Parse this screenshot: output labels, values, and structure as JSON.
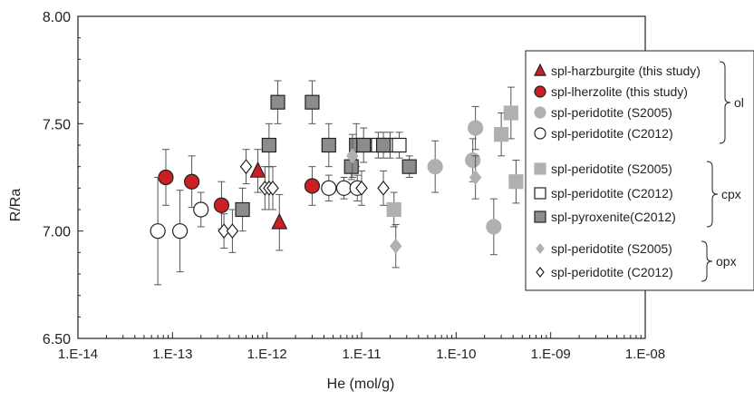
{
  "chart_data": {
    "type": "scatter",
    "title": "",
    "xlabel": "He (mol/g)",
    "ylabel": "R/Ra",
    "xscale": "log",
    "xlim": [
      1e-14,
      1e-08
    ],
    "ylim": [
      6.5,
      8.0
    ],
    "xtick_labels": [
      "1.E-14",
      "1.E-13",
      "1.E-12",
      "1.E-11",
      "1.E-10",
      "1.E-09",
      "1.E-08"
    ],
    "ytick_labels": [
      "6.50",
      "7.00",
      "7.50",
      "8.00"
    ],
    "grid": false,
    "legend_placement": "right",
    "legend_groups": [
      {
        "name": "ol",
        "series": [
          0,
          1,
          2,
          3
        ]
      },
      {
        "name": "cpx",
        "series": [
          4,
          5,
          6
        ]
      },
      {
        "name": "opx",
        "series": [
          7,
          8
        ]
      }
    ],
    "series": [
      {
        "name": "spl-harzburgite (this study)",
        "marker": "triangle",
        "fill": "#cc1f24",
        "stroke": "#222222",
        "points": [
          {
            "x": 8e-13,
            "y": 7.28,
            "err": 0.1
          },
          {
            "x": 1.35e-12,
            "y": 7.04,
            "err": 0.13
          }
        ]
      },
      {
        "name": "spl-lherzolite (this study)",
        "marker": "circle",
        "fill": "#cc1f24",
        "stroke": "#222222",
        "points": [
          {
            "x": 8.5e-14,
            "y": 7.25,
            "err": 0.13
          },
          {
            "x": 1.6e-13,
            "y": 7.23,
            "err": 0.12
          },
          {
            "x": 3.3e-13,
            "y": 7.12,
            "err": 0.11
          },
          {
            "x": 3e-12,
            "y": 7.21,
            "err": 0.09
          }
        ]
      },
      {
        "name": "spl-peridotite (S2005)",
        "marker": "circle",
        "fill": "#b0b0b0",
        "stroke": "#b0b0b0",
        "points": [
          {
            "x": 6e-11,
            "y": 7.3,
            "err": 0.12
          },
          {
            "x": 1.5e-10,
            "y": 7.33,
            "err": 0.1
          },
          {
            "x": 1.6e-10,
            "y": 7.48,
            "err": 0.1
          },
          {
            "x": 2.5e-10,
            "y": 7.02,
            "err": 0.13
          }
        ]
      },
      {
        "name": "spl-peridotite (C2012)",
        "marker": "circle",
        "fill": "#ffffff",
        "stroke": "#222222",
        "points": [
          {
            "x": 7e-14,
            "y": 7.0,
            "err": 0.25
          },
          {
            "x": 1.2e-13,
            "y": 7.0,
            "err": 0.19
          },
          {
            "x": 2e-13,
            "y": 7.1,
            "err": 0.08
          },
          {
            "x": 4.5e-12,
            "y": 7.2,
            "err": 0.06
          },
          {
            "x": 6.5e-12,
            "y": 7.2,
            "err": 0.05
          },
          {
            "x": 9e-12,
            "y": 7.2,
            "err": 0.06
          }
        ]
      },
      {
        "name": "spl-peridotite (S2005)",
        "marker": "square",
        "fill": "#b0b0b0",
        "stroke": "#b0b0b0",
        "points": [
          {
            "x": 2.2e-11,
            "y": 7.1,
            "err": 0.08
          },
          {
            "x": 3e-10,
            "y": 7.45,
            "err": 0.1
          },
          {
            "x": 3.8e-10,
            "y": 7.55,
            "err": 0.12
          },
          {
            "x": 4.3e-10,
            "y": 7.23,
            "err": 0.1
          }
        ]
      },
      {
        "name": "spl-peridotite (C2012)",
        "marker": "square",
        "fill": "#ffffff",
        "stroke": "#222222",
        "points": [
          {
            "x": 1.5e-11,
            "y": 7.4,
            "err": 0.06
          },
          {
            "x": 2e-11,
            "y": 7.4,
            "err": 0.06
          },
          {
            "x": 2.5e-11,
            "y": 7.4,
            "err": 0.06
          }
        ]
      },
      {
        "name": "spl-pyroxenite(C2012)",
        "marker": "square",
        "fill": "#8c8c8c",
        "stroke": "#222222",
        "points": [
          {
            "x": 5.5e-13,
            "y": 7.1,
            "err": 0.1
          },
          {
            "x": 1.05e-12,
            "y": 7.4,
            "err": 0.1
          },
          {
            "x": 1.3e-12,
            "y": 7.6,
            "err": 0.1
          },
          {
            "x": 3e-12,
            "y": 7.6,
            "err": 0.1
          },
          {
            "x": 4.5e-12,
            "y": 7.4,
            "err": 0.1
          },
          {
            "x": 7.8e-12,
            "y": 7.3,
            "err": 0.06
          },
          {
            "x": 8.8e-12,
            "y": 7.4,
            "err": 0.1
          },
          {
            "x": 1.05e-11,
            "y": 7.4,
            "err": 0.08
          },
          {
            "x": 1.7e-11,
            "y": 7.4,
            "err": 0.06
          },
          {
            "x": 3.2e-11,
            "y": 7.3,
            "err": 0.05
          }
        ]
      },
      {
        "name": "spl-peridotite (S2005)",
        "marker": "diamond",
        "fill": "#b0b0b0",
        "stroke": "#b0b0b0",
        "points": [
          {
            "x": 8e-12,
            "y": 7.35,
            "err": 0.1
          },
          {
            "x": 2.3e-11,
            "y": 6.93,
            "err": 0.1
          },
          {
            "x": 1.6e-10,
            "y": 7.25,
            "err": 0.1
          }
        ]
      },
      {
        "name": "spl-peridotite (C2012)",
        "marker": "diamond",
        "fill": "#ffffff",
        "stroke": "#222222",
        "points": [
          {
            "x": 3.5e-13,
            "y": 7.0,
            "err": 0.08
          },
          {
            "x": 4.3e-13,
            "y": 7.0,
            "err": 0.1
          },
          {
            "x": 6e-13,
            "y": 7.3,
            "err": 0.08
          },
          {
            "x": 9.5e-13,
            "y": 7.2,
            "err": 0.1
          },
          {
            "x": 1.05e-12,
            "y": 7.2,
            "err": 0.1
          },
          {
            "x": 1.15e-12,
            "y": 7.2,
            "err": 0.1
          },
          {
            "x": 1e-11,
            "y": 7.2,
            "err": 0.08
          },
          {
            "x": 1.7e-11,
            "y": 7.2,
            "err": 0.08
          }
        ]
      }
    ]
  }
}
